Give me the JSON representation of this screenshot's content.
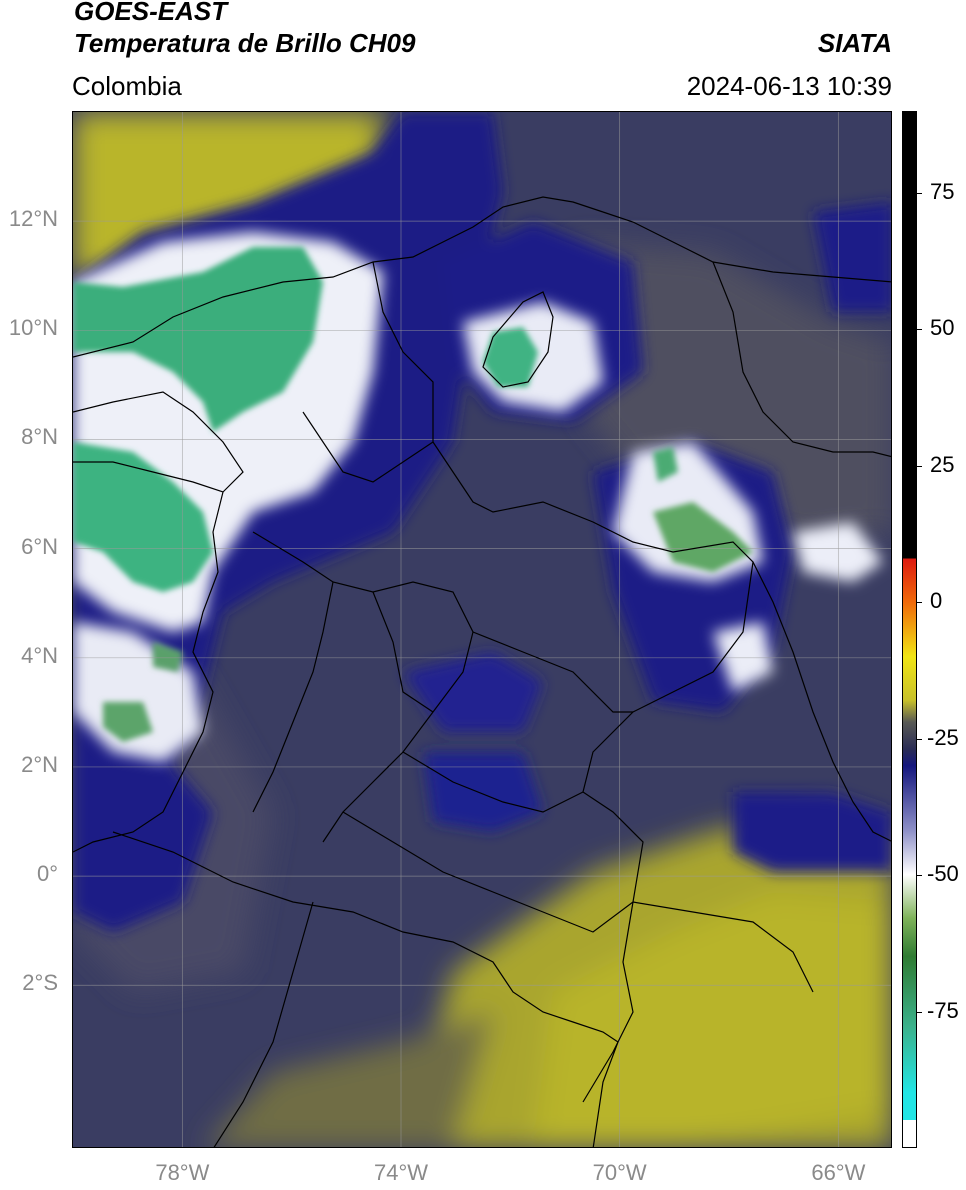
{
  "header": {
    "satellite": "GOES-EAST",
    "product": "Temperatura de Brillo CH09",
    "org": "SIATA",
    "region": "Colombia",
    "datetime": "2024-06-13 10:39"
  },
  "map": {
    "lon_range": [
      -80,
      -65
    ],
    "lat_range": [
      -5,
      14
    ],
    "lat_ticks": [
      {
        "value": 12,
        "label": "12°N"
      },
      {
        "value": 10,
        "label": "10°N"
      },
      {
        "value": 8,
        "label": "8°N"
      },
      {
        "value": 6,
        "label": "6°N"
      },
      {
        "value": 4,
        "label": "4°N"
      },
      {
        "value": 2,
        "label": "2°N"
      },
      {
        "value": 0,
        "label": "0°"
      },
      {
        "value": -2,
        "label": "2°S"
      }
    ],
    "lon_ticks": [
      {
        "value": -78,
        "label": "78°W"
      },
      {
        "value": -74,
        "label": "74°W"
      },
      {
        "value": -70,
        "label": "70°W"
      },
      {
        "value": -66,
        "label": "66°W"
      }
    ],
    "colors": {
      "warm_background": "#3d3f5e",
      "dry_yellow": "#b8b427",
      "deep_blue": "#14177f",
      "cold_white": "#f2f2f8",
      "coldest_green": "#3db07f",
      "border_line": "#000000",
      "grid_line": "#9a9a9a"
    }
  },
  "colorbar": {
    "ticks": [
      {
        "value": 75,
        "label": "75"
      },
      {
        "value": 50,
        "label": "50"
      },
      {
        "value": 25,
        "label": "25"
      },
      {
        "value": 0,
        "label": "0"
      },
      {
        "value": -25,
        "label": "-25"
      },
      {
        "value": -50,
        "label": "-50"
      },
      {
        "value": -75,
        "label": "-75"
      }
    ],
    "range": [
      -100,
      90
    ]
  }
}
